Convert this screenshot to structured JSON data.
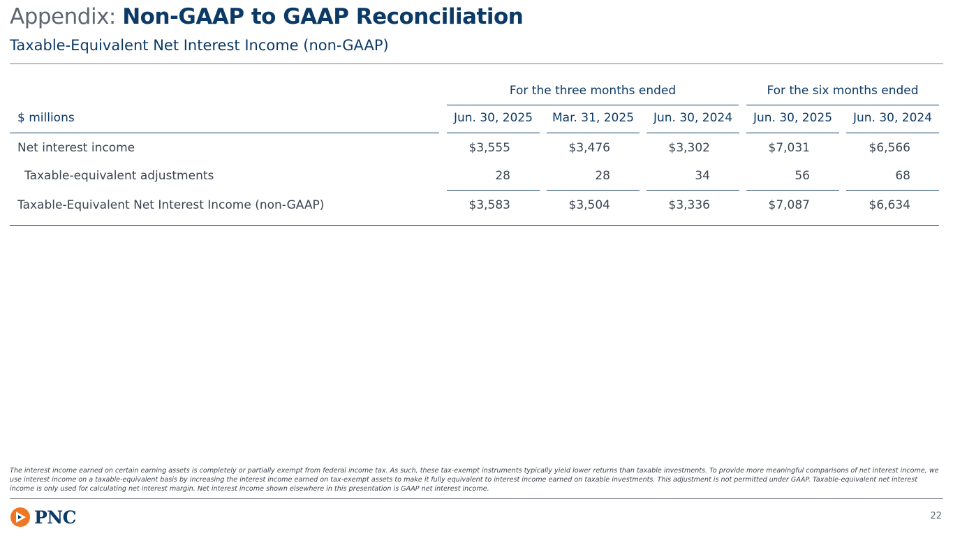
{
  "title": {
    "prefix": "Appendix:",
    "main": "Non-GAAP to GAAP Reconciliation"
  },
  "subtitle": "Taxable-Equivalent Net Interest Income (non-GAAP)",
  "table": {
    "groups": [
      "For the three months ended",
      "For the six months ended"
    ],
    "units_label": "$ millions",
    "columns": [
      "Jun. 30, 2025",
      "Mar. 31, 2025",
      "Jun. 30, 2024",
      "Jun. 30, 2025",
      "Jun. 30, 2024"
    ],
    "rows": [
      {
        "label": "Net interest income",
        "values": [
          "$3,555",
          "$3,476",
          "$3,302",
          "$7,031",
          "$6,566"
        ]
      },
      {
        "label": "Taxable-equivalent adjustments",
        "values": [
          "28",
          "28",
          "34",
          "56",
          "68"
        ]
      },
      {
        "label": "Taxable-Equivalent Net Interest Income (non-GAAP)",
        "values": [
          "$3,583",
          "$3,504",
          "$3,336",
          "$7,087",
          "$6,634"
        ]
      }
    ]
  },
  "footnote": "The interest income earned on certain earning assets is completely or partially exempt from federal income tax. As such, these tax-exempt instruments typically yield lower returns than taxable investments. To provide more meaningful comparisons of net interest income, we use interest income on a taxable-equivalent basis by increasing the interest income earned on tax-exempt assets to make it fully equivalent to interest income earned on taxable investments. This adjustment is not permitted under GAAP. Taxable-equivalent net interest income is only used for calculating net interest margin. Net interest income shown elsewhere in this presentation is GAAP net interest income.",
  "logo": {
    "text": "PNC",
    "icon": "pnc-logo-icon",
    "colors": {
      "orange": "#ef7622",
      "navy": "#0c3a66"
    }
  },
  "page_number": "22"
}
